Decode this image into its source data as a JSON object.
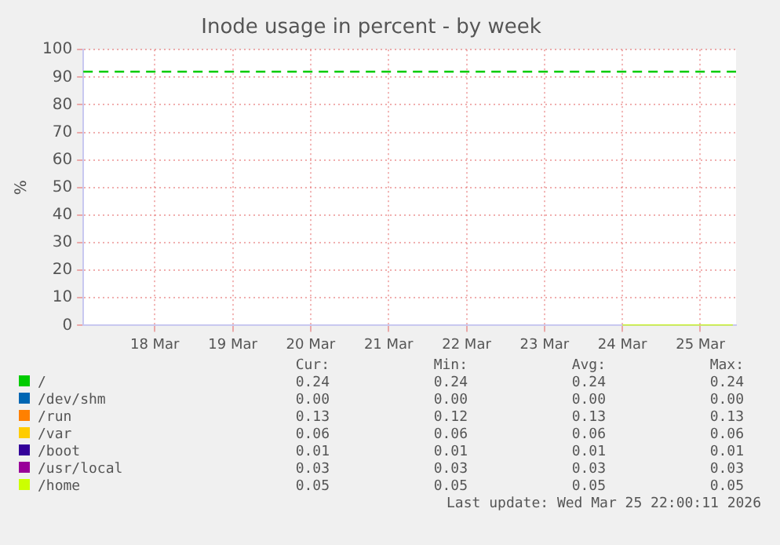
{
  "chart_data": {
    "type": "line",
    "title": "Inode usage in percent - by week",
    "ylabel": "%",
    "xlim": [
      "--03-17T14:00",
      "--03-25T23:00"
    ],
    "xticks": [
      {
        "value": "--03-18T12:00",
        "label": "18 Mar"
      },
      {
        "value": "--03-19T12:00",
        "label": "19 Mar"
      },
      {
        "value": "--03-20T12:00",
        "label": "20 Mar"
      },
      {
        "value": "--03-21T12:00",
        "label": "21 Mar"
      },
      {
        "value": "--03-22T12:00",
        "label": "22 Mar"
      },
      {
        "value": "--03-23T12:00",
        "label": "23 Mar"
      },
      {
        "value": "--03-24T12:00",
        "label": "24 Mar"
      },
      {
        "value": "--03-25T12:00",
        "label": "25 Mar"
      }
    ],
    "ylim": [
      0,
      100
    ],
    "yticks": [
      0,
      10,
      20,
      30,
      40,
      50,
      60,
      70,
      80,
      90,
      100
    ],
    "grid": true,
    "legend": "bottom",
    "marker": "none",
    "x": [
      "--03-24T12:00",
      "--03-25T22:00"
    ],
    "series": [
      {
        "name": "/",
        "color": "#00cc00",
        "values": [
          null,
          null
        ]
      },
      {
        "name": "/dev/shm",
        "color": "#0066b3",
        "values": [
          null,
          null
        ]
      },
      {
        "name": "/run",
        "color": "#ff8000",
        "values": [
          null,
          null
        ]
      },
      {
        "name": "/var",
        "color": "#ffcc00",
        "values": [
          null,
          null
        ]
      },
      {
        "name": "/boot",
        "color": "#330099",
        "values": [
          null,
          null
        ]
      },
      {
        "name": "/usr/local",
        "color": "#990099",
        "values": [
          null,
          null
        ]
      },
      {
        "name": "/home",
        "color": "#ccff00",
        "values": [
          0,
          0
        ]
      }
    ],
    "ref_lines": [
      {
        "axis": "y",
        "value": 92,
        "color": "#00cc00",
        "line_style": "dashed"
      }
    ],
    "annotations": [
      "Cur:",
      "Min:",
      "Avg:",
      "Max:",
      "0.24",
      "0.24",
      "0.24",
      "0.24",
      "0.00",
      "0.00",
      "0.00",
      "0.00",
      "0.13",
      "0.12",
      "0.13",
      "0.13",
      "0.06",
      "0.06",
      "0.06",
      "0.06",
      "0.01",
      "0.01",
      "0.01",
      "0.01",
      "0.03",
      "0.03",
      "0.03",
      "0.03",
      "0.05",
      "0.05",
      "0.05",
      "0.05",
      "Last update: Wed Mar 25 22:00:11 2026"
    ]
  }
}
